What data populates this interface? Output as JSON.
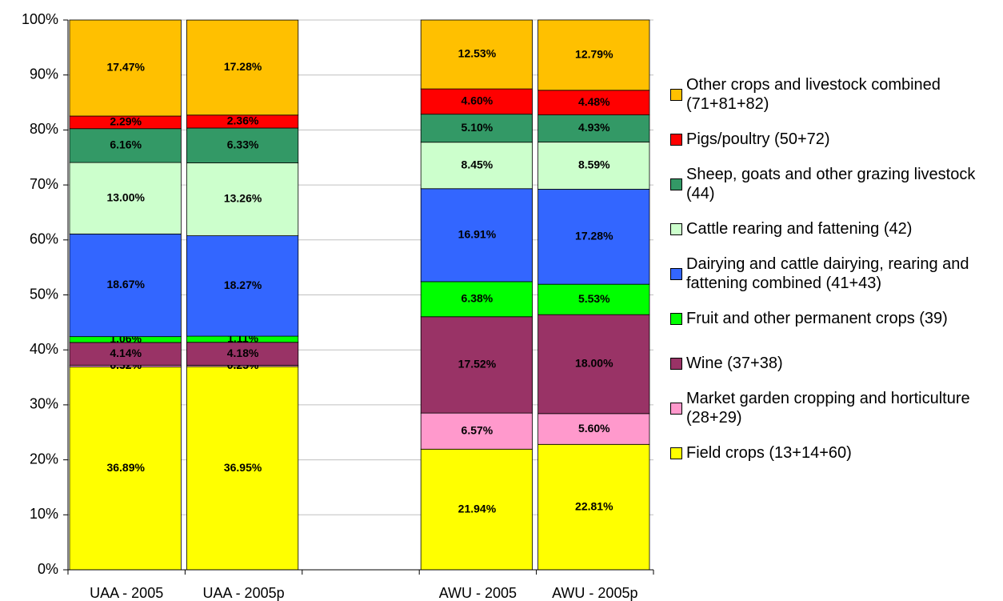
{
  "chart_data": {
    "type": "stacked_bar",
    "categories": [
      "UAA - 2005",
      "UAA - 2005p",
      null,
      "AWU - 2005",
      "AWU - 2005p"
    ],
    "ylim": [
      0,
      100
    ],
    "yticks": [
      {
        "value": 0,
        "label": "0%"
      },
      {
        "value": 10,
        "label": "10%"
      },
      {
        "value": 20,
        "label": "20%"
      },
      {
        "value": 30,
        "label": "30%"
      },
      {
        "value": 40,
        "label": "40%"
      },
      {
        "value": 50,
        "label": "50%"
      },
      {
        "value": 60,
        "label": "60%"
      },
      {
        "value": 70,
        "label": "70%"
      },
      {
        "value": 80,
        "label": "80%"
      },
      {
        "value": 90,
        "label": "90%"
      },
      {
        "value": 100,
        "label": "100%"
      }
    ],
    "grid": true,
    "legend": "right",
    "series": [
      {
        "name": "Field crops (13+14+60)",
        "color": "#ffff00",
        "values": [
          36.89,
          36.95,
          null,
          21.94,
          22.81
        ],
        "value_labels": [
          "36.89%",
          "36.95%",
          null,
          "21.94%",
          "22.81%"
        ]
      },
      {
        "name": "Market garden cropping and horticulture (28+29)",
        "color": "#ff99cc",
        "values": [
          0.32,
          0.25,
          null,
          6.57,
          5.6
        ],
        "value_labels": [
          "0.32%",
          "0.25%",
          null,
          "6.57%",
          "5.60%"
        ]
      },
      {
        "name": "Wine (37+38)",
        "color": "#993366",
        "values": [
          4.14,
          4.18,
          null,
          17.52,
          18.0
        ],
        "value_labels": [
          "4.14%",
          "4.18%",
          null,
          "17.52%",
          "18.00%"
        ]
      },
      {
        "name": "Fruit and other permanent crops (39)",
        "color": "#00ff00",
        "values": [
          1.06,
          1.11,
          null,
          6.38,
          5.53
        ],
        "value_labels": [
          "1.06%",
          "1.11%",
          null,
          "6.38%",
          "5.53%"
        ]
      },
      {
        "name": "Dairying and cattle dairying, rearing and fattening combined (41+43)",
        "color": "#3366ff",
        "values": [
          18.67,
          18.27,
          null,
          16.91,
          17.28
        ],
        "value_labels": [
          "18.67%",
          "18.27%",
          null,
          "16.91%",
          "17.28%"
        ]
      },
      {
        "name": "Cattle rearing and fattening (42)",
        "color": "#ccffcc",
        "values": [
          13.0,
          13.26,
          null,
          8.45,
          8.59
        ],
        "value_labels": [
          "13.00%",
          "13.26%",
          null,
          "8.45%",
          "8.59%"
        ]
      },
      {
        "name": "Sheep, goats and other grazing livestock (44)",
        "color": "#339966",
        "values": [
          6.16,
          6.33,
          null,
          5.1,
          4.93
        ],
        "value_labels": [
          "6.16%",
          "6.33%",
          null,
          "5.10%",
          "4.93%"
        ]
      },
      {
        "name": "Pigs/poultry (50+72)",
        "color": "#ff0000",
        "values": [
          2.29,
          2.36,
          null,
          4.6,
          4.48
        ],
        "value_labels": [
          "2.29%",
          "2.36%",
          null,
          "4.60%",
          "4.48%"
        ]
      },
      {
        "name": "Other crops and livestock combined (71+81+82)",
        "color": "#ffc000",
        "values": [
          17.47,
          17.28,
          null,
          12.53,
          12.79
        ],
        "value_labels": [
          "17.47%",
          "17.28%",
          null,
          "12.53%",
          "12.79%"
        ]
      }
    ]
  }
}
